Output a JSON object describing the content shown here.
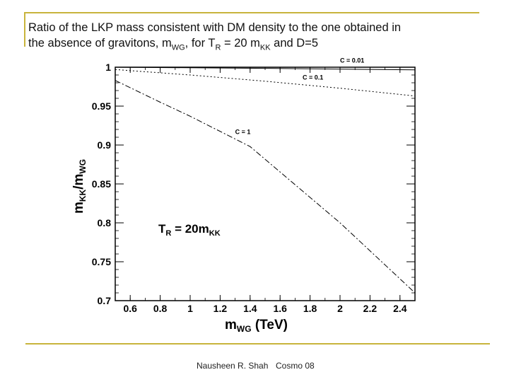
{
  "slide": {
    "title_line1": "Ratio of the LKP mass consistent with DM density to the one obtained in",
    "title_line2_pre": "the absence of gravitons, m",
    "title_sub_wg": "WG",
    "title_line2_mid": ", for T",
    "title_sub_r": "R",
    "title_line2_eq": " = 20 m",
    "title_sub_kk": "KK",
    "title_line2_post": " and D=5",
    "footer_author": "Nausheen R. Shah",
    "footer_event": "Cosmo 08"
  },
  "chart_data": {
    "type": "line",
    "xlabel": {
      "base": "m",
      "sub": "WG",
      "suffix": " (TeV)"
    },
    "ylabel": {
      "base1": "m",
      "sub1": "KK",
      "sep": "/m",
      "sub2": "WG"
    },
    "annotation": {
      "base": "T",
      "sub1": "R",
      "eq": " = 20m",
      "sub2": "KK"
    },
    "xlim": [
      0.5,
      2.5
    ],
    "ylim": [
      0.7,
      1.0
    ],
    "x_ticks": [
      "0.6",
      "0.8",
      "1",
      "1.2",
      "1.4",
      "1.6",
      "1.8",
      "2",
      "2.2",
      "2.4"
    ],
    "y_ticks": [
      "0.7",
      "0.75",
      "0.8",
      "0.85",
      "0.9",
      "0.95",
      "1"
    ],
    "grid": false,
    "series": [
      {
        "name": "C = 0.01",
        "x": [
          0.5,
          1.5,
          2.5
        ],
        "y": [
          1.0,
          0.9985,
          0.9965
        ]
      },
      {
        "name": "C = 0.1",
        "x": [
          0.5,
          1.0,
          1.5,
          2.0,
          2.5
        ],
        "y": [
          0.997,
          0.99,
          0.982,
          0.973,
          0.963
        ]
      },
      {
        "name": "C = 1",
        "x": [
          0.5,
          0.8,
          1.0,
          1.4,
          2.0,
          2.5
        ],
        "y": [
          0.983,
          0.955,
          0.937,
          0.898,
          0.8,
          0.71
        ]
      }
    ]
  }
}
